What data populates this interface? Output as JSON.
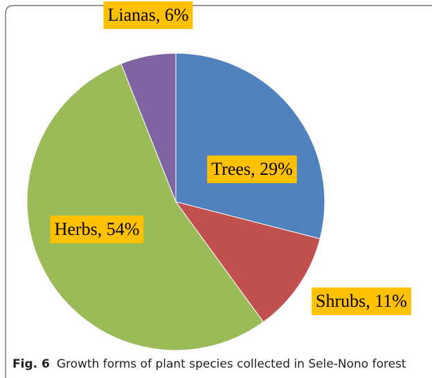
{
  "chart_data": {
    "type": "pie",
    "values": [
      29,
      11,
      54,
      6
    ],
    "value_labels": [
      "Trees, 29%",
      "Shrubs, 11%",
      "Herbs, 54%",
      "Lianas, 6%"
    ],
    "colors": [
      "#4f81bd",
      "#c0504d",
      "#9bbb59",
      "#8064a2"
    ],
    "label_color": "#ffc000",
    "caption_label": "Fig. 6",
    "caption": "Growth forms of plant species collected in Sele-Nono forest"
  }
}
